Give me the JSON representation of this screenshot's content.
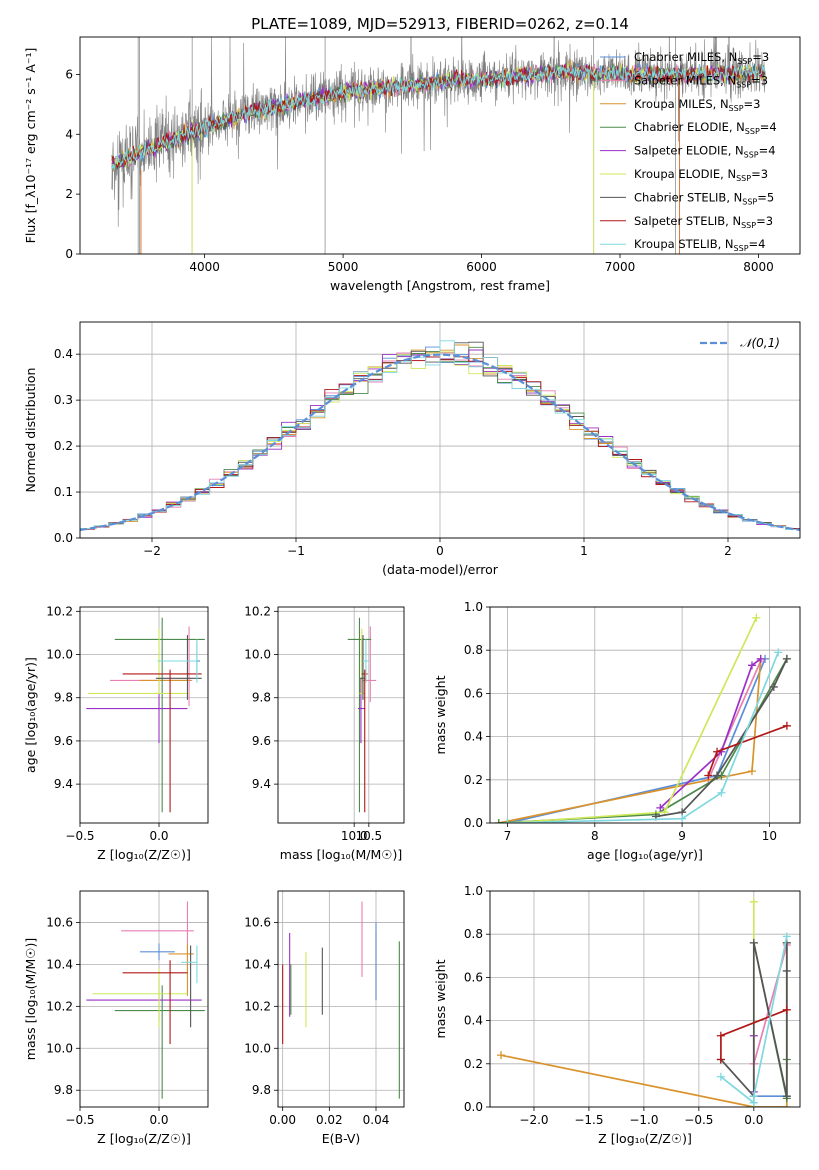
{
  "figure": {
    "title": "PLATE=1089, MJD=52913, FIBERID=0262, z=0.14"
  },
  "colors": {
    "Chabrier MILES": "#5a8fd8",
    "Salpeter MILES": "#e87fb3",
    "Kroupa MILES": "#d9932c",
    "Chabrier ELODIE": "#4c8a4c",
    "Salpeter ELODIE": "#9b30c8",
    "Kroupa ELODIE": "#cde85a",
    "Chabrier STELIB": "#555555",
    "Salpeter STELIB": "#b01818",
    "Kroupa STELIB": "#7fd8e0",
    "data": "#808080",
    "normal": "#5b8fd6",
    "orange": "#d9793a"
  },
  "chart_data": [
    {
      "id": "spectrum",
      "type": "line",
      "xlabel": "wavelength [Angstrom, rest frame]",
      "ylabel": "Flux [f_λ10⁻¹⁷ erg cm⁻² s⁻¹ A⁻¹]",
      "xlim": [
        3100,
        8300
      ],
      "ylim": [
        0,
        7.25
      ],
      "xticks": [
        4000,
        5000,
        6000,
        7000,
        8000
      ],
      "yticks": [
        0,
        2,
        4,
        6
      ],
      "legend_position": "right",
      "legend": [
        {
          "name": "Chabrier MILES, N",
          "sub": "SSP",
          "tail": "=3"
        },
        {
          "name": "Salpeter MILES, N",
          "sub": "SSP",
          "tail": "=3"
        },
        {
          "name": "Kroupa MILES, N",
          "sub": "SSP",
          "tail": "=3"
        },
        {
          "name": "Chabrier ELODIE, N",
          "sub": "SSP",
          "tail": "=4"
        },
        {
          "name": "Salpeter ELODIE, N",
          "sub": "SSP",
          "tail": "=4"
        },
        {
          "name": "Kroupa ELODIE, N",
          "sub": "SSP",
          "tail": "=3"
        },
        {
          "name": "Chabrier STELIB, N",
          "sub": "SSP",
          "tail": "=5"
        },
        {
          "name": "Salpeter STELIB, N",
          "sub": "SSP",
          "tail": "=3"
        },
        {
          "name": "Kroupa STELIB, N",
          "sub": "SSP",
          "tail": "=4"
        }
      ],
      "continuum": {
        "x": [
          3330,
          3500,
          3700,
          4000,
          4300,
          4600,
          5000,
          5400,
          5800,
          6200,
          6600,
          7000,
          7400,
          7800,
          8000
        ],
        "y": [
          3.0,
          3.3,
          3.7,
          4.2,
          4.7,
          5.0,
          5.4,
          5.6,
          5.8,
          5.9,
          6.1,
          6.0,
          6.0,
          6.0,
          6.1
        ]
      },
      "spikes": [
        {
          "x": 3520,
          "y": 0
        },
        {
          "x": 3530,
          "y": 0
        },
        {
          "x": 3910,
          "y": 0
        },
        {
          "x": 4870,
          "y": 0
        },
        {
          "x": 6810,
          "y": 0
        },
        {
          "x": 7400,
          "y": 0
        }
      ]
    },
    {
      "id": "residuals",
      "type": "histogram",
      "xlabel": "(data-model)/error",
      "ylabel": "Normed distribution",
      "xlim": [
        -2.5,
        2.5
      ],
      "ylim": [
        0,
        0.47
      ],
      "xticks": [
        -2,
        -1,
        0,
        1,
        2
      ],
      "yticks": [
        0.0,
        0.1,
        0.2,
        0.3,
        0.4
      ],
      "legend_label": "𝒩(0,1)",
      "legend_position": "top-right",
      "bin_width": 0.1
    },
    {
      "id": "age_vs_Z",
      "type": "errorbar",
      "xlabel": "Z [log₁₀(Z/Z☉)]",
      "ylabel": "age  [log₁₀(age/yr)]",
      "xlim": [
        -0.5,
        0.31
      ],
      "ylim": [
        9.22,
        10.22
      ],
      "xticks": [
        -0.5,
        0.0
      ],
      "yticks": [
        9.4,
        9.6,
        9.8,
        10.0,
        10.2
      ],
      "points": [
        {
          "model": "Chabrier MILES",
          "x": 0.24,
          "xerr": [
            0.0,
            0.02
          ],
          "y": 9.97,
          "yerr": [
            0.08,
            0.09
          ]
        },
        {
          "model": "Salpeter MILES",
          "x": 0.19,
          "xerr": [
            0.5,
            0.02
          ],
          "y": 9.88,
          "yerr": [
            0.12,
            0.25
          ]
        },
        {
          "model": "Kroupa MILES",
          "x": 0.18,
          "xerr": [
            0.3,
            0.02
          ],
          "y": 9.88,
          "yerr": [
            0.0,
            0.05
          ]
        },
        {
          "model": "Chabrier ELODIE",
          "x": 0.02,
          "xerr": [
            0.3,
            0.27
          ],
          "y": 10.07,
          "yerr": [
            0.8,
            0.1
          ]
        },
        {
          "model": "Salpeter ELODIE",
          "x": 0.0,
          "xerr": [
            0.46,
            0.18
          ],
          "y": 9.75,
          "yerr": [
            0.16,
            0.14
          ]
        },
        {
          "model": "Kroupa ELODIE",
          "x": 0.0,
          "xerr": [
            0.45,
            0.19
          ],
          "y": 9.82,
          "yerr": [
            0.0,
            0.3
          ]
        },
        {
          "model": "Chabrier STELIB",
          "x": 0.18,
          "xerr": [
            0.2,
            0.09
          ],
          "y": 9.89,
          "yerr": [
            0.1,
            0.2
          ]
        },
        {
          "model": "Salpeter STELIB",
          "x": 0.07,
          "xerr": [
            0.3,
            0.2
          ],
          "y": 9.91,
          "yerr": [
            0.64,
            0.02
          ]
        },
        {
          "model": "Kroupa STELIB",
          "x": 0.24,
          "xerr": [
            0.25,
            0.0
          ],
          "y": 9.97,
          "yerr": [
            0.1,
            0.1
          ]
        }
      ]
    },
    {
      "id": "age_vs_mass",
      "type": "errorbar",
      "xlabel": "mass [log₁₀(M/M☉)]",
      "ylabel": "",
      "xlim": [
        7.4,
        11.7
      ],
      "ylim": [
        9.22,
        10.22
      ],
      "xticks": [
        10.0,
        10.5
      ],
      "yticks": [
        9.4,
        9.6,
        9.8,
        10.0,
        10.2
      ],
      "points": [
        {
          "model": "Chabrier MILES",
          "x": 10.26,
          "xerr": [
            0.0,
            0.0
          ],
          "y": 9.97,
          "yerr": [
            0.1,
            0.1
          ]
        },
        {
          "model": "Salpeter MILES",
          "x": 10.55,
          "xerr": [
            0.2,
            0.2
          ],
          "y": 9.88,
          "yerr": [
            0.1,
            0.25
          ]
        },
        {
          "model": "Kroupa MILES",
          "x": 10.38,
          "xerr": [
            0.12,
            0.05
          ],
          "y": 9.88,
          "yerr": [
            0.0,
            0.05
          ]
        },
        {
          "model": "Chabrier ELODIE",
          "x": 10.18,
          "xerr": [
            0.4,
            0.4
          ],
          "y": 10.07,
          "yerr": [
            0.8,
            0.1
          ]
        },
        {
          "model": "Salpeter ELODIE",
          "x": 10.23,
          "xerr": [
            0.1,
            0.15
          ],
          "y": 9.75,
          "yerr": [
            0.16,
            0.14
          ]
        },
        {
          "model": "Kroupa ELODIE",
          "x": 10.26,
          "xerr": [
            0.08,
            0.1
          ],
          "y": 9.82,
          "yerr": [
            0.0,
            0.3
          ]
        },
        {
          "model": "Chabrier STELIB",
          "x": 10.3,
          "xerr": [
            0.1,
            0.05
          ],
          "y": 9.89,
          "yerr": [
            0.1,
            0.2
          ]
        },
        {
          "model": "Salpeter STELIB",
          "x": 10.36,
          "xerr": [
            0.1,
            0.1
          ],
          "y": 9.91,
          "yerr": [
            0.64,
            0.02
          ]
        },
        {
          "model": "Kroupa STELIB",
          "x": 10.4,
          "xerr": [
            0.1,
            0.1
          ],
          "y": 9.97,
          "yerr": [
            0.1,
            0.1
          ]
        }
      ]
    },
    {
      "id": "weight_vs_age",
      "type": "line",
      "xlabel": "age  [log₁₀(age/yr)]",
      "ylabel": "mass weight",
      "xlim": [
        6.8,
        10.35
      ],
      "ylim": [
        0,
        1.0
      ],
      "xticks": [
        7,
        8,
        9,
        10
      ],
      "yticks": [
        0.0,
        0.2,
        0.4,
        0.6,
        0.8,
        1.0
      ],
      "series": [
        {
          "model": "Chabrier MILES",
          "x": [
            7.0,
            9.4,
            9.95
          ],
          "y": [
            0.0,
            0.22,
            0.76
          ]
        },
        {
          "model": "Salpeter MILES",
          "x": [
            9.3,
            9.9
          ],
          "y": [
            0.2,
            0.75
          ]
        },
        {
          "model": "Kroupa MILES",
          "x": [
            6.9,
            9.8,
            9.9
          ],
          "y": [
            0.0,
            0.24,
            0.76
          ]
        },
        {
          "model": "Chabrier ELODIE",
          "x": [
            6.9,
            8.7,
            9.45,
            10.2
          ],
          "y": [
            0.0,
            0.04,
            0.22,
            0.76
          ]
        },
        {
          "model": "Salpeter ELODIE",
          "x": [
            8.75,
            9.45,
            9.8,
            9.9
          ],
          "y": [
            0.07,
            0.33,
            0.73,
            0.76
          ]
        },
        {
          "model": "Kroupa ELODIE",
          "x": [
            7.0,
            8.8,
            9.85
          ],
          "y": [
            0.0,
            0.05,
            0.95
          ]
        },
        {
          "model": "Chabrier STELIB",
          "x": [
            8.7,
            9.0,
            9.4,
            10.05,
            10.2
          ],
          "y": [
            0.03,
            0.05,
            0.22,
            0.63,
            0.76
          ]
        },
        {
          "model": "Salpeter STELIB",
          "x": [
            9.3,
            9.4,
            10.2
          ],
          "y": [
            0.22,
            0.33,
            0.45
          ]
        },
        {
          "model": "Kroupa STELIB",
          "x": [
            7.0,
            9.0,
            9.45,
            10.1
          ],
          "y": [
            0.0,
            0.02,
            0.14,
            0.79
          ]
        }
      ]
    },
    {
      "id": "mass_vs_Z",
      "type": "errorbar",
      "xlabel": "Z [log₁₀(Z/Z☉)]",
      "ylabel": "mass [log₁₀(M/M☉)]",
      "xlim": [
        -0.5,
        0.31
      ],
      "ylim": [
        9.72,
        10.75
      ],
      "xticks": [
        -0.5,
        0.0
      ],
      "yticks": [
        9.8,
        10.0,
        10.2,
        10.4,
        10.6
      ],
      "points": [
        {
          "model": "Chabrier MILES",
          "x": 0.0,
          "xerr": [
            0.12,
            0.1
          ],
          "y": 10.46,
          "yerr": [
            0.04,
            0.04
          ]
        },
        {
          "model": "Salpeter MILES",
          "x": 0.18,
          "xerr": [
            0.42,
            0.04
          ],
          "y": 10.56,
          "yerr": [
            0.2,
            0.14
          ]
        },
        {
          "model": "Kroupa MILES",
          "x": 0.18,
          "xerr": [
            0.12,
            0.04
          ],
          "y": 10.45,
          "yerr": [
            0.2,
            0.05
          ]
        },
        {
          "model": "Chabrier ELODIE",
          "x": 0.02,
          "xerr": [
            0.3,
            0.27
          ],
          "y": 10.18,
          "yerr": [
            0.42,
            0.12
          ]
        },
        {
          "model": "Salpeter ELODIE",
          "x": 0.0,
          "xerr": [
            0.46,
            0.27
          ],
          "y": 10.23,
          "yerr": [
            0.1,
            0.1
          ]
        },
        {
          "model": "Kroupa ELODIE",
          "x": 0.0,
          "xerr": [
            0.42,
            0.18
          ],
          "y": 10.26,
          "yerr": [
            0.16,
            0.12
          ]
        },
        {
          "model": "Chabrier STELIB",
          "x": 0.2,
          "xerr": [
            0.0,
            0.0
          ],
          "y": 10.3,
          "yerr": [
            0.2,
            0.19
          ]
        },
        {
          "model": "Salpeter STELIB",
          "x": 0.07,
          "xerr": [
            0.3,
            0.11
          ],
          "y": 10.36,
          "yerr": [
            0.34,
            0.06
          ]
        },
        {
          "model": "Kroupa STELIB",
          "x": 0.24,
          "xerr": [
            0.1,
            0.0
          ],
          "y": 10.41,
          "yerr": [
            0.1,
            0.08
          ]
        }
      ]
    },
    {
      "id": "mass_vs_ebv",
      "type": "errorbar",
      "xlabel": "E(B-V)",
      "ylabel": "",
      "xlim": [
        -0.002,
        0.052
      ],
      "ylim": [
        9.72,
        10.75
      ],
      "xticks": [
        0.0,
        0.02,
        0.04
      ],
      "xtick_labels": [
        "0.00",
        "0.02",
        "0.04"
      ],
      "yticks": [
        9.8,
        10.0,
        10.2,
        10.4,
        10.6
      ],
      "points": [
        {
          "model": "Salpeter STELIB",
          "x": 0.0,
          "y": 10.2,
          "yerr": [
            0.18,
            0.2
          ]
        },
        {
          "model": "Salpeter ELODIE",
          "x": 0.003,
          "y": 10.35,
          "yerr": [
            0.2,
            0.2
          ]
        },
        {
          "model": "Chabrier ELODIE",
          "x": 0.0035,
          "y": 10.3,
          "yerr": [
            0.14,
            0.1
          ]
        },
        {
          "model": "Kroupa ELODIE",
          "x": 0.01,
          "y": 10.28,
          "yerr": [
            0.18,
            0.18
          ]
        },
        {
          "model": "Chabrier STELIB",
          "x": 0.017,
          "y": 10.32,
          "yerr": [
            0.16,
            0.16
          ]
        },
        {
          "model": "Salpeter MILES",
          "x": 0.034,
          "y": 10.52,
          "yerr": [
            0.18,
            0.18
          ]
        },
        {
          "model": "Kroupa MILES",
          "x": 0.04,
          "y": 10.39,
          "yerr": [
            0.16,
            0.17
          ]
        },
        {
          "model": "Chabrier MILES",
          "x": 0.04,
          "y": 10.4,
          "yerr": [
            0.17,
            0.2
          ]
        },
        {
          "model": "Chabrier ELODIE",
          "x": 0.05,
          "y": 10.14,
          "yerr": [
            0.38,
            0.37
          ]
        }
      ]
    },
    {
      "id": "weight_vs_Z",
      "type": "line",
      "xlabel": "Z [log₁₀(Z/Z☉)]",
      "ylabel": "mass weight",
      "xlim": [
        -2.4,
        0.42
      ],
      "ylim": [
        0,
        1.0
      ],
      "xticks": [
        -2.0,
        -1.5,
        -1.0,
        -0.5,
        0.0
      ],
      "yticks": [
        0.0,
        0.2,
        0.4,
        0.6,
        0.8,
        1.0
      ],
      "series": [
        {
          "model": "Chabrier MILES",
          "x": [
            0.0,
            0.3,
            0.3
          ],
          "y": [
            0.05,
            0.05,
            0.76
          ]
        },
        {
          "model": "Salpeter MILES",
          "x": [
            0.0,
            0.3
          ],
          "y": [
            0.2,
            0.75
          ]
        },
        {
          "model": "Kroupa MILES",
          "x": [
            -2.3,
            0.0,
            0.3,
            0.3
          ],
          "y": [
            0.24,
            0.0,
            0.0,
            0.76
          ]
        },
        {
          "model": "Chabrier ELODIE",
          "x": [
            0.0,
            0.3,
            0.3
          ],
          "y": [
            0.76,
            0.04,
            0.22
          ]
        },
        {
          "model": "Salpeter ELODIE",
          "x": [
            0.0,
            0.0
          ],
          "y": [
            0.07,
            0.33
          ]
        },
        {
          "model": "Kroupa ELODIE",
          "x": [
            0.0,
            0.0,
            0.0
          ],
          "y": [
            0.0,
            0.05,
            0.95
          ]
        },
        {
          "model": "Chabrier STELIB",
          "x": [
            -0.3,
            0.0,
            0.0,
            0.3,
            0.3,
            0.3
          ],
          "y": [
            0.22,
            0.05,
            0.76,
            0.05,
            0.63,
            0.76
          ]
        },
        {
          "model": "Salpeter STELIB",
          "x": [
            -0.3,
            -0.3,
            0.3
          ],
          "y": [
            0.22,
            0.33,
            0.45
          ]
        },
        {
          "model": "Kroupa STELIB",
          "x": [
            -0.3,
            0.0,
            0.0,
            0.3
          ],
          "y": [
            0.14,
            0.02,
            0.05,
            0.79
          ]
        }
      ]
    }
  ]
}
